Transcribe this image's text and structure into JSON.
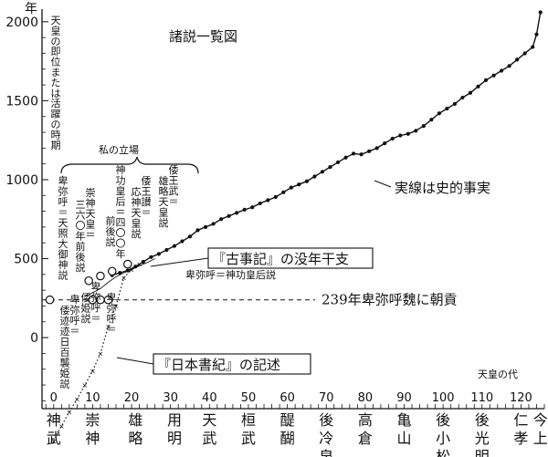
{
  "chart_data": {
    "type": "scatter",
    "title": "諸説一覧図",
    "y_unit": "年",
    "ylabel": "天皇の即位または活躍の時期",
    "xlabel": "天皇の代",
    "xlim": [
      -3,
      126
    ],
    "ylim": [
      -450,
      2080
    ],
    "x_ticks": [
      0,
      10,
      20,
      30,
      40,
      50,
      60,
      70,
      80,
      90,
      100,
      110,
      120
    ],
    "y_ticks": [
      0,
      500,
      1000,
      1500,
      2000
    ],
    "emperor_labels": [
      {
        "x": 0,
        "text": "神武"
      },
      {
        "x": 10,
        "text": "崇神"
      },
      {
        "x": 21,
        "text": "雄略"
      },
      {
        "x": 31,
        "text": "用明"
      },
      {
        "x": 40,
        "text": "天武"
      },
      {
        "x": 50,
        "text": "桓武"
      },
      {
        "x": 60,
        "text": "醍醐"
      },
      {
        "x": 70,
        "text": "後冷泉"
      },
      {
        "x": 80,
        "text": "高倉"
      },
      {
        "x": 90,
        "text": "亀山"
      },
      {
        "x": 100,
        "text": "後小松"
      },
      {
        "x": 110,
        "text": "後光明"
      },
      {
        "x": 120,
        "text": "仁孝"
      },
      {
        "x": 125,
        "text": "今上"
      }
    ],
    "series": [
      {
        "name": "史的事実",
        "style": "solid line with dots",
        "x": [
          15,
          17,
          19,
          21,
          23,
          25,
          27,
          29,
          31,
          33,
          35,
          37,
          39,
          41,
          43,
          45,
          47,
          49,
          51,
          53,
          55,
          57,
          59,
          61,
          63,
          65,
          67,
          69,
          71,
          73,
          75,
          77,
          79,
          81,
          83,
          85,
          87,
          89,
          91,
          93,
          95,
          97,
          99,
          101,
          103,
          105,
          107,
          109,
          111,
          113,
          115,
          117,
          119,
          121,
          123,
          124,
          125
        ],
        "y": [
          395,
          410,
          425,
          450,
          480,
          510,
          530,
          555,
          580,
          610,
          640,
          680,
          700,
          720,
          750,
          770,
          790,
          810,
          825,
          850,
          870,
          890,
          920,
          950,
          970,
          990,
          1020,
          1050,
          1080,
          1110,
          1140,
          1165,
          1160,
          1180,
          1200,
          1230,
          1260,
          1280,
          1290,
          1310,
          1340,
          1380,
          1420,
          1450,
          1480,
          1520,
          1550,
          1590,
          1630,
          1660,
          1690,
          1720,
          1760,
          1800,
          1840,
          1920,
          2060
        ]
      },
      {
        "name": "『日本書紀』の記述",
        "style": "dotted line",
        "x": [
          0,
          2,
          4,
          6,
          8,
          10,
          12,
          14,
          16,
          18,
          20,
          22
        ],
        "y": [
          -655,
          -560,
          -470,
          -390,
          -300,
          -210,
          -100,
          70,
          200,
          380,
          430,
          465
        ]
      },
      {
        "name": "『古事記』の没年干支",
        "style": "thin line",
        "x": [
          8,
          10,
          12,
          14,
          16,
          18,
          20,
          22,
          24,
          26
        ],
        "y": [
          260,
          285,
          310,
          350,
          385,
          410,
          430,
          455,
          475,
          500
        ]
      }
    ],
    "reference_lines": [
      {
        "y": 239,
        "label": "239年卑弥呼魏に朝貢"
      }
    ],
    "theory_markers": [
      {
        "x": -1,
        "y": 239,
        "label": "卑弥呼＝天照大御神説"
      },
      {
        "x": 9,
        "y": 360,
        "label": "崇神天皇＝三六〇年前後説"
      },
      {
        "x": 12,
        "y": 390,
        "label": "神功皇后＝四〇〇年前後説"
      },
      {
        "x": 15,
        "y": 420,
        "label": "倭王讃＝応神天皇説"
      },
      {
        "x": 19,
        "y": 465,
        "label": "倭王武＝雄略天皇説"
      },
      {
        "x": 10,
        "y": 239,
        "label": "卑弥呼＝倭迹迹日百襲姫説"
      },
      {
        "x": 12,
        "y": 239,
        "label": "卑弥呼＝倭姫説"
      },
      {
        "x": 14,
        "y": 239,
        "label": "卑弥呼＝神功皇后説"
      }
    ],
    "bracket_label": "私の立場",
    "callouts": [
      "実線は史的事実",
      "『古事記』の没年干支",
      "『日本書紀』の記述",
      "卑弥呼＝神功皇后説"
    ],
    "grid": false,
    "legend": "none"
  }
}
